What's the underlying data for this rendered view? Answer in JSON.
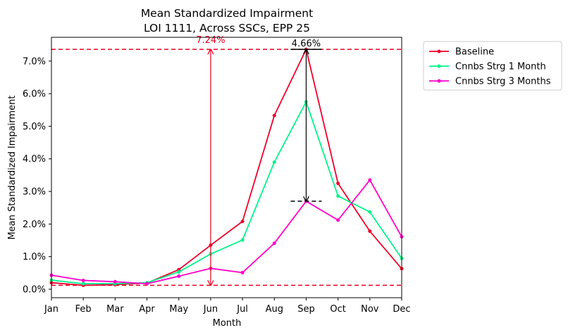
{
  "chart_data": {
    "type": "line",
    "title": "Mean Standardized Impairment",
    "subtitle": "LOI 1111, Across SSCs, EPP 25",
    "xlabel": "Month",
    "ylabel": "Mean Standardized Impairment",
    "categories": [
      "Jan",
      "Feb",
      "Mar",
      "Apr",
      "May",
      "Jun",
      "Jul",
      "Aug",
      "Sep",
      "Oct",
      "Nov",
      "Dec"
    ],
    "yticks": [
      "0.0%",
      "1.0%",
      "2.0%",
      "3.0%",
      "4.0%",
      "5.0%",
      "6.0%",
      "7.0%"
    ],
    "ylim": [
      -0.26,
      7.73
    ],
    "grid": false,
    "legend_position": "outside-right",
    "series": [
      {
        "name": "Baseline",
        "color": "#f0002a",
        "values": [
          0.2,
          0.12,
          0.14,
          0.19,
          0.6,
          1.35,
          2.08,
          5.33,
          7.36,
          3.25,
          1.78,
          0.63
        ]
      },
      {
        "name": "Cnnbs Strg 1 Month",
        "color": "#00f58a",
        "values": [
          0.28,
          0.17,
          0.17,
          0.2,
          0.53,
          1.08,
          1.51,
          3.9,
          5.75,
          2.86,
          2.37,
          0.95
        ]
      },
      {
        "name": "Cnnbs Strg 3 Months",
        "color": "#ff00c8",
        "values": [
          0.43,
          0.27,
          0.23,
          0.17,
          0.4,
          0.64,
          0.51,
          1.41,
          2.7,
          2.12,
          3.35,
          1.61
        ]
      }
    ],
    "reference_lines": {
      "color": "#e8001f",
      "max": 7.36,
      "min": 0.12
    },
    "annotations": [
      {
        "text": "7.24%",
        "color": "#e8001f",
        "x": "Jun",
        "from": 0.12,
        "to": 7.36
      },
      {
        "text": "4.66%",
        "color": "#000000",
        "x": "Sep",
        "from": 2.7,
        "to": 7.36
      }
    ]
  }
}
